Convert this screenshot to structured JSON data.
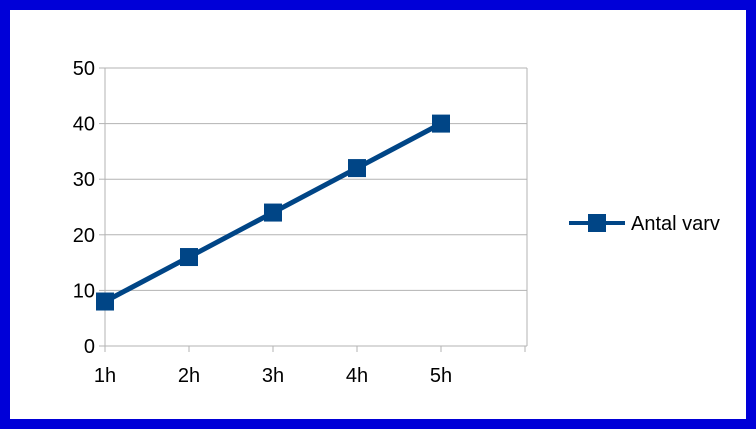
{
  "colors": {
    "frame": "#0000d8",
    "background": "#ffffff",
    "grid": "#b3b3b3",
    "axis": "#b3b3b3",
    "series": "#004586",
    "text": "#000000"
  },
  "chart_data": {
    "type": "line",
    "title": "",
    "xlabel": "",
    "ylabel": "",
    "categories": [
      "1h",
      "2h",
      "3h",
      "4h",
      "5h"
    ],
    "series": [
      {
        "name": "Antal varv",
        "values": [
          8,
          16,
          24,
          32,
          40
        ],
        "marker": "square"
      }
    ],
    "ylim": [
      0,
      50
    ],
    "y_ticks": [
      0,
      10,
      20,
      30,
      40,
      50
    ],
    "grid": "horizontal",
    "legend_position": "right"
  }
}
